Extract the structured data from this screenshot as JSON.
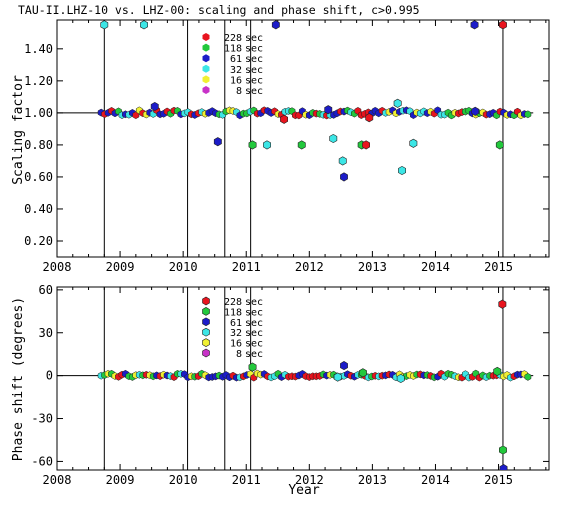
{
  "title": "TAU-II.LHZ-10 vs. LHZ-00: scaling and phase shift, c>0.995",
  "xlabel": "Year",
  "colors": {
    "228": "#e8141e",
    "118": "#22c83c",
    "61": "#1c1cc8",
    "32": "#3ce6e6",
    "16": "#f0f032",
    "8": "#c832c8",
    "frame": "#000000",
    "hline": "#000000"
  },
  "legend_labels": [
    "228 sec",
    "118 sec",
    "61 sec",
    "32 sec",
    "16 sec",
    "8 sec"
  ],
  "legend_periods": [
    "228",
    "118",
    "61",
    "32",
    "16",
    "8"
  ],
  "chart_data": [
    {
      "type": "scatter",
      "name": "scaling",
      "ylabel": "Scaling factor",
      "xlim": [
        2008,
        2015.8
      ],
      "ylim": [
        0.1,
        1.58
      ],
      "xticks": [
        2008,
        2009,
        2010,
        2011,
        2012,
        2013,
        2014,
        2015
      ],
      "xtick_labels": [
        "2008",
        "2009",
        "2010",
        "2011",
        "2012",
        "2013",
        "2014",
        "2015"
      ],
      "yticks": [
        0.2,
        0.4,
        0.6,
        0.8,
        1.0,
        1.2,
        1.4
      ],
      "ytick_labels": [
        "0.20",
        "0.40",
        "0.60",
        "0.80",
        "1.00",
        "1.20",
        "1.40"
      ],
      "hline": 1.0,
      "vlines": [
        2008.75,
        2010.07,
        2010.66,
        2011.07,
        2015.07
      ],
      "legend_position": "upper-center",
      "baseline": {
        "x_start": 2008.7,
        "x_end": 2015.5,
        "step": 0.055,
        "value": 1.0
      },
      "points": [
        {
          "period": "32",
          "x": 2008.75,
          "y": 1.55
        },
        {
          "period": "32",
          "x": 2009.38,
          "y": 1.55
        },
        {
          "period": "61",
          "x": 2011.47,
          "y": 1.55
        },
        {
          "period": "61",
          "x": 2014.62,
          "y": 1.55
        },
        {
          "period": "228",
          "x": 2015.07,
          "y": 1.55
        },
        {
          "period": "61",
          "x": 2009.55,
          "y": 1.04
        },
        {
          "period": "61",
          "x": 2010.55,
          "y": 0.82
        },
        {
          "period": "118",
          "x": 2011.1,
          "y": 0.8
        },
        {
          "period": "32",
          "x": 2011.33,
          "y": 0.8
        },
        {
          "period": "118",
          "x": 2011.88,
          "y": 0.8
        },
        {
          "period": "61",
          "x": 2012.3,
          "y": 1.02
        },
        {
          "period": "32",
          "x": 2012.38,
          "y": 0.84
        },
        {
          "period": "32",
          "x": 2012.53,
          "y": 0.7
        },
        {
          "period": "61",
          "x": 2012.55,
          "y": 0.6
        },
        {
          "period": "118",
          "x": 2012.83,
          "y": 0.8
        },
        {
          "period": "228",
          "x": 2012.9,
          "y": 0.8
        },
        {
          "period": "32",
          "x": 2013.4,
          "y": 1.06
        },
        {
          "period": "32",
          "x": 2013.47,
          "y": 0.64
        },
        {
          "period": "32",
          "x": 2013.65,
          "y": 0.81
        },
        {
          "period": "118",
          "x": 2015.02,
          "y": 0.8
        },
        {
          "period": "228",
          "x": 2011.6,
          "y": 0.96
        },
        {
          "period": "228",
          "x": 2012.95,
          "y": 0.97
        },
        {
          "period": "61",
          "x": 2014.63,
          "y": 1.01
        }
      ]
    },
    {
      "type": "scatter",
      "name": "phase",
      "ylabel": "Phase shift (degrees)",
      "xlim": [
        2008,
        2015.8
      ],
      "ylim": [
        -66,
        62
      ],
      "xticks": [
        2008,
        2009,
        2010,
        2011,
        2012,
        2013,
        2014,
        2015
      ],
      "xtick_labels": [
        "2008",
        "2009",
        "2010",
        "2011",
        "2012",
        "2013",
        "2014",
        "2015"
      ],
      "yticks": [
        -60,
        -30,
        0,
        30,
        60
      ],
      "ytick_labels": [
        "-60",
        "-30",
        "0",
        "30",
        "60"
      ],
      "hline": 0,
      "vlines": [
        2008.75,
        2010.07,
        2010.66,
        2011.07,
        2015.07
      ],
      "legend_position": "upper-center",
      "baseline": {
        "x_start": 2008.7,
        "x_end": 2015.5,
        "step": 0.055,
        "value": 0
      },
      "points": [
        {
          "period": "228",
          "x": 2015.06,
          "y": 50
        },
        {
          "period": "118",
          "x": 2015.07,
          "y": -52
        },
        {
          "period": "61",
          "x": 2015.08,
          "y": -65
        },
        {
          "period": "118",
          "x": 2011.1,
          "y": 6
        },
        {
          "period": "61",
          "x": 2012.55,
          "y": 7
        },
        {
          "period": "118",
          "x": 2014.98,
          "y": 3
        },
        {
          "period": "32",
          "x": 2012.45,
          "y": -1
        },
        {
          "period": "32",
          "x": 2013.45,
          "y": -2
        },
        {
          "period": "118",
          "x": 2012.85,
          "y": 2
        }
      ]
    }
  ]
}
